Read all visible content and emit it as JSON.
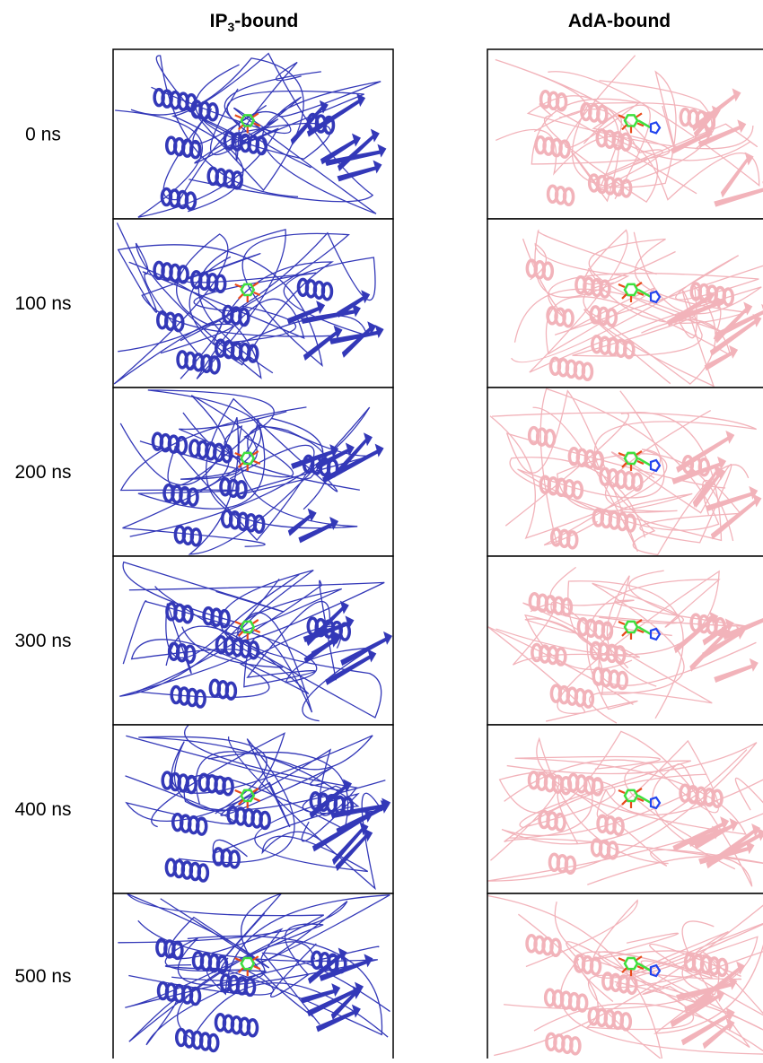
{
  "columns": [
    {
      "title": {
        "main": "IP",
        "sub": "3",
        "rest": "-bound"
      }
    },
    {
      "title": {
        "main": "AdA-bound"
      }
    }
  ],
  "rows": [
    "0 ns",
    "100 ns",
    "200 ns",
    "300 ns",
    "400 ns",
    "500 ns"
  ]
}
